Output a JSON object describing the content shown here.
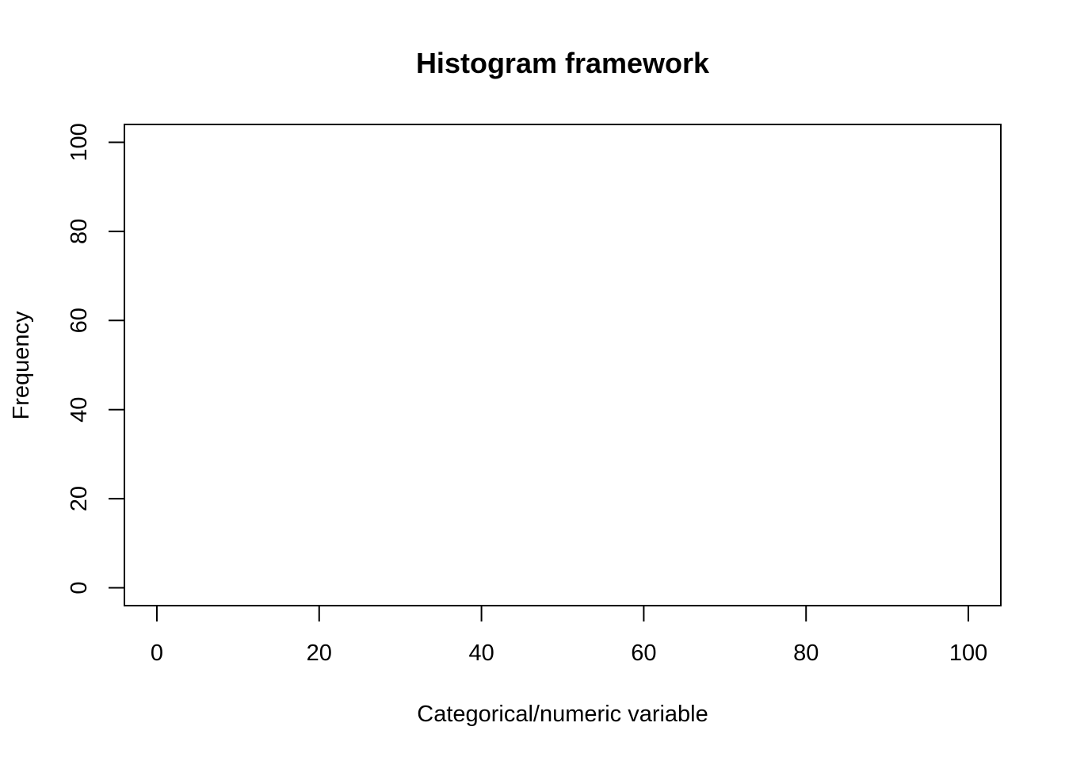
{
  "chart_data": {
    "type": "bar",
    "title": "Histogram framework",
    "xlabel": "Categorical/numeric variable",
    "ylabel": "Frequency",
    "x": [],
    "values": [],
    "xlim": [
      -4,
      104
    ],
    "ylim": [
      -4,
      104
    ],
    "x_ticks": [
      0,
      20,
      40,
      60,
      80,
      100
    ],
    "y_ticks": [
      0,
      20,
      40,
      60,
      80,
      100
    ],
    "x_tick_labels": [
      "0",
      "20",
      "40",
      "60",
      "80",
      "100"
    ],
    "y_tick_labels": [
      "0",
      "20",
      "40",
      "60",
      "80",
      "100"
    ],
    "grid": false,
    "colors": {
      "axes": "#000000",
      "background": "#ffffff"
    }
  }
}
